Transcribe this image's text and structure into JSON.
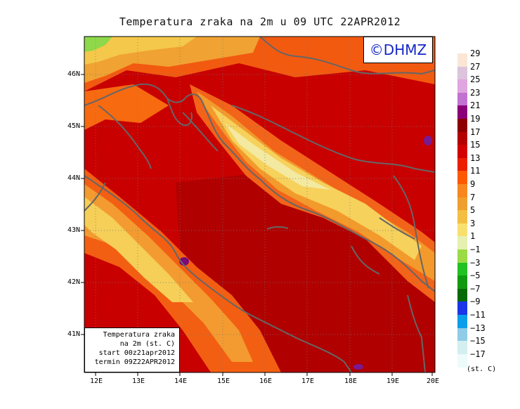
{
  "title": "Temperatura zraka na 2m u 09 UTC 22APR2012",
  "credit": "©DHMZ",
  "info": {
    "line1": "Temperatura zraka",
    "line2": "na 2m (st. C)",
    "line3": "start 00z21apr2012",
    "line4": "termin 09Z22APR2012"
  },
  "lat_labels": [
    "46N",
    "45N",
    "44N",
    "43N",
    "42N",
    "41N"
  ],
  "lon_labels": [
    "12E",
    "13E",
    "14E",
    "15E",
    "16E",
    "17E",
    "18E",
    "19E",
    "20E"
  ],
  "legend": {
    "labels": [
      "29",
      "27",
      "25",
      "23",
      "21",
      "19",
      "17",
      "15",
      "13",
      "11",
      "9",
      "7",
      "5",
      "3",
      "1",
      "−1",
      "−3",
      "−5",
      "−7",
      "−9",
      "−11",
      "−13",
      "−15",
      "−17"
    ],
    "colors": [
      "#fbe6d6",
      "#dcc4dc",
      "#e0a6e0",
      "#c273d2",
      "#8b0078",
      "#8e0000",
      "#b50000",
      "#d40000",
      "#eb1e00",
      "#fd5a00",
      "#f7871e",
      "#ee9f2f",
      "#f4be43",
      "#f8e070",
      "#e6f0b0",
      "#9bdb45",
      "#21c221",
      "#119a11",
      "#076a07",
      "#1c35e8",
      "#0a9eea",
      "#90cce6",
      "#d3efef",
      "#eefbfb"
    ],
    "unit": "(st. C)"
  }
}
